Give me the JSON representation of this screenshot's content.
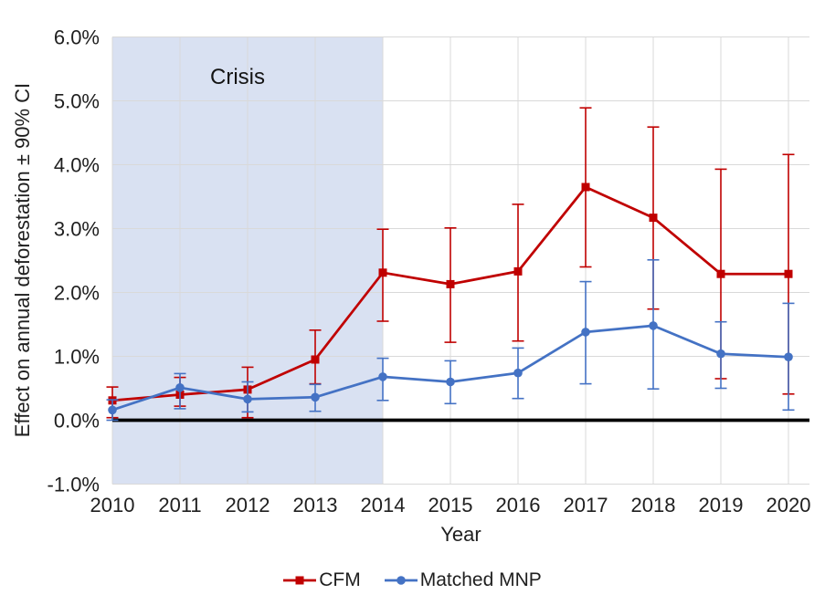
{
  "figure": {
    "crisis_label": "Crisis",
    "xlabel": "Year",
    "ylabel": "Effect on annual deforestation ± 90% CI"
  },
  "legend": {
    "position": "bottom",
    "items": [
      {
        "label": "CFM",
        "color": "#C00000",
        "marker": "square"
      },
      {
        "label": "Matched MNP",
        "color": "#4472C4",
        "marker": "circle"
      }
    ]
  },
  "chart_data": {
    "type": "line",
    "title": "",
    "xlabel": "Year",
    "ylabel": "Effect on annual deforestation ± 90% CI",
    "categories": [
      "2010",
      "2011",
      "2012",
      "2013",
      "2014",
      "2015",
      "2016",
      "2017",
      "2018",
      "2019",
      "2020"
    ],
    "ylim": [
      -1.0,
      6.0
    ],
    "y_tick_step": 1.0,
    "grid": true,
    "zero_line": true,
    "units": "percent",
    "error_bars": "90% CI",
    "y_ticks": [
      {
        "value": 6,
        "label": "6.0%"
      },
      {
        "value": 5,
        "label": "5.0%"
      },
      {
        "value": 4,
        "label": "4.0%"
      },
      {
        "value": 3,
        "label": "3.0%"
      },
      {
        "value": 2,
        "label": "2.0%"
      },
      {
        "value": 1,
        "label": "1.0%"
      },
      {
        "value": 0,
        "label": "0.0%"
      },
      {
        "value": -1,
        "label": "-1.0%"
      }
    ],
    "crisis_band": {
      "label": "Crisis",
      "from": "2010",
      "to": "2014",
      "color": "#D9E1F2"
    },
    "series": [
      {
        "name": "CFM",
        "color": "#C00000",
        "marker": "square",
        "values": [
          0.31,
          0.4,
          0.48,
          0.95,
          2.31,
          2.13,
          2.33,
          3.65,
          3.17,
          2.29,
          2.29
        ],
        "ci_low": [
          0.04,
          0.22,
          0.04,
          0.57,
          1.55,
          1.22,
          1.24,
          2.4,
          1.74,
          0.65,
          0.41
        ],
        "ci_high": [
          0.52,
          0.67,
          0.83,
          1.41,
          2.99,
          3.01,
          3.38,
          4.89,
          4.59,
          3.93,
          4.16
        ]
      },
      {
        "name": "Matched MNP",
        "color": "#4472C4",
        "marker": "circle",
        "values": [
          0.16,
          0.51,
          0.33,
          0.36,
          0.68,
          0.6,
          0.74,
          1.38,
          1.48,
          1.04,
          0.99
        ],
        "ci_low": [
          0.0,
          0.18,
          0.13,
          0.14,
          0.31,
          0.26,
          0.34,
          0.57,
          0.49,
          0.5,
          0.16
        ],
        "ci_high": [
          0.32,
          0.73,
          0.6,
          0.56,
          0.97,
          0.93,
          1.13,
          2.17,
          2.51,
          1.54,
          1.83
        ]
      }
    ],
    "legend_position": "bottom"
  }
}
